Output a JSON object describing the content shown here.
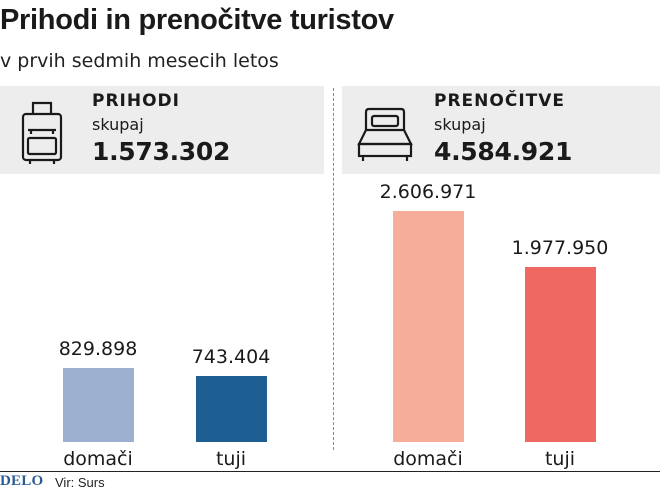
{
  "title": "Prihodi in prenočitve turistov",
  "subtitle": "v prvih sedmih mesecih letos",
  "left": {
    "label": "PRIHODI",
    "sub": "skupaj",
    "total": "1.573.302",
    "icon": "suitcase-icon"
  },
  "right": {
    "label": "PRENOČITVE",
    "sub": "skupaj",
    "total": "4.584.921",
    "icon": "bed-icon"
  },
  "footer": {
    "logo": "DELO",
    "source": "Vir: Surs"
  },
  "colors": {
    "prihodi_domaci": "#9db0cf",
    "prihodi_tuji": "#1e5f93",
    "prenocitve_domaci": "#f6ae9a",
    "prenocitve_tuji": "#ef6862"
  },
  "chart_data": [
    {
      "type": "bar",
      "title": "PRIHODI",
      "categories": [
        "domači",
        "tuji"
      ],
      "values": [
        829898,
        743404
      ],
      "labels": [
        "829.898",
        "743.404"
      ],
      "total": "1.573.302"
    },
    {
      "type": "bar",
      "title": "PRENOČITVE",
      "categories": [
        "domači",
        "tuji"
      ],
      "values": [
        2606971,
        1977950
      ],
      "labels": [
        "2.606.971",
        "1.977.950"
      ],
      "total": "4.584.921"
    }
  ]
}
